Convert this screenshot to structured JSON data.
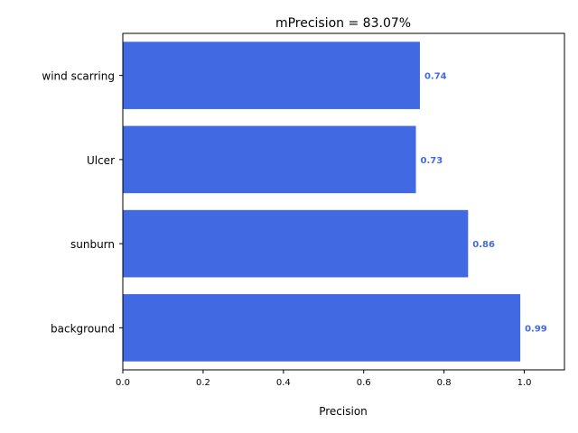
{
  "chart_data": {
    "type": "bar",
    "orientation": "horizontal",
    "title": "mPrecision = 83.07%",
    "xlabel": "Precision",
    "ylabel": "",
    "categories": [
      "background",
      "sunburn",
      "Ulcer",
      "wind scarring"
    ],
    "values": [
      0.99,
      0.86,
      0.73,
      0.74
    ],
    "value_labels": [
      "0.99",
      "0.86",
      "0.73",
      "0.74"
    ],
    "xlim": [
      0,
      1.1
    ],
    "xticks": [
      0.0,
      0.2,
      0.4,
      0.6,
      0.8,
      1.0
    ],
    "xtick_labels": [
      "0.0",
      "0.2",
      "0.4",
      "0.6",
      "0.8",
      "1.0"
    ],
    "grid": false,
    "legend": false,
    "bar_color": "#4169E1",
    "value_label_color": "#4169E1"
  }
}
